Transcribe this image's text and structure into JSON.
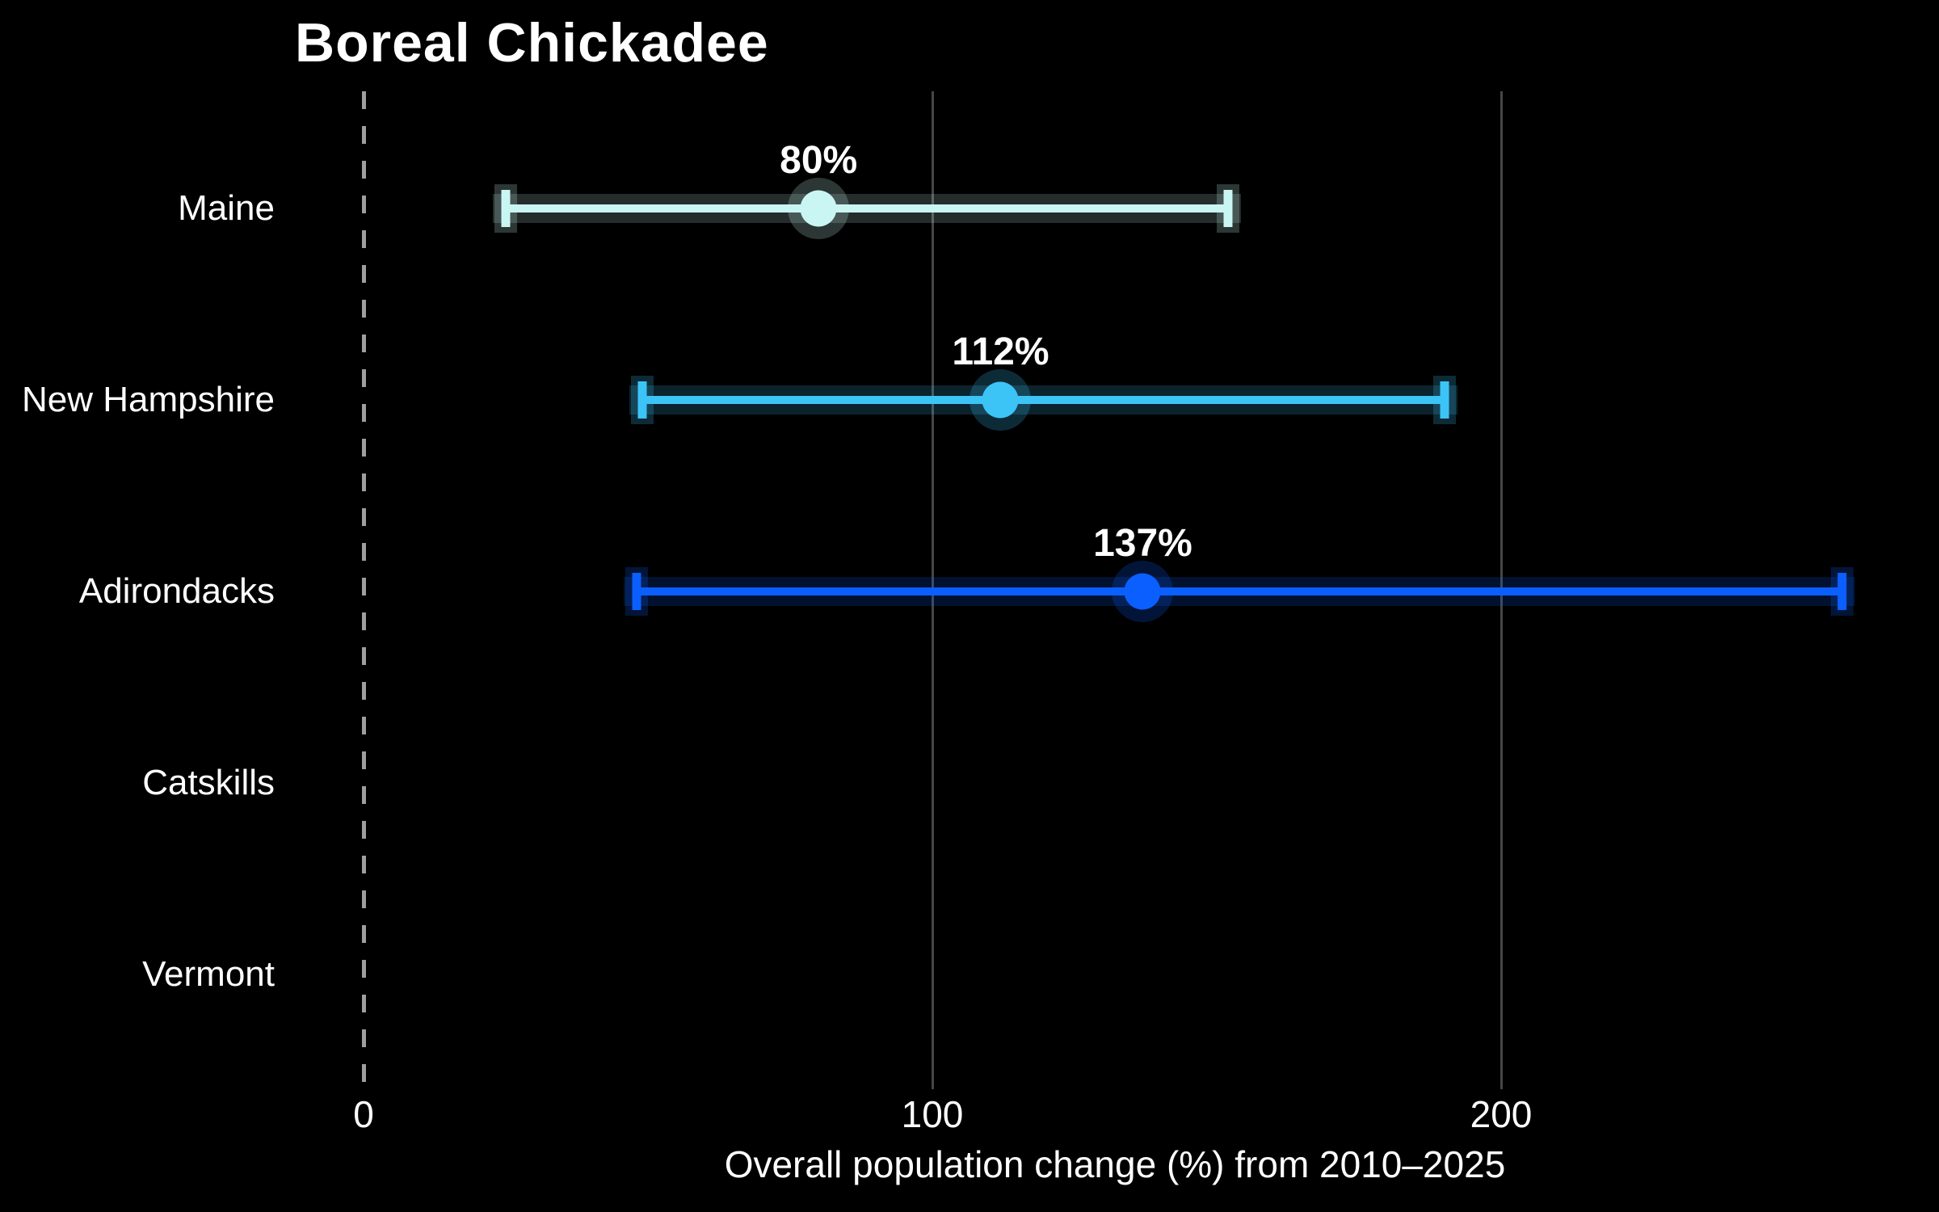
{
  "chart_data": {
    "type": "scatter",
    "subtype": "dot-with-horizontal-error-bars",
    "title": "Boreal Chickadee",
    "xlabel": "Overall population change (%) from 2010–2025",
    "ylabel": "",
    "categories": [
      "Maine",
      "New Hampshire",
      "Adirondacks",
      "Catskills",
      "Vermont"
    ],
    "series": [
      {
        "name": "Maine",
        "value": 80,
        "low": 25,
        "high": 152,
        "label": "80%",
        "color": "#c9f6f2"
      },
      {
        "name": "New Hampshire",
        "value": 112,
        "low": 49,
        "high": 190,
        "label": "112%",
        "color": "#3cc4f7"
      },
      {
        "name": "Adirondacks",
        "value": 137,
        "low": 48,
        "high": 260,
        "label": "137%",
        "color": "#0b5fff"
      },
      {
        "name": "Catskills",
        "value": null,
        "low": null,
        "high": null,
        "label": "",
        "color": null
      },
      {
        "name": "Vermont",
        "value": null,
        "low": null,
        "high": null,
        "label": "",
        "color": null
      }
    ],
    "x_ticks": [
      0,
      100,
      200
    ],
    "x_tick_labels": [
      "0",
      "100",
      "200"
    ],
    "xlim": [
      -64,
      277
    ],
    "grid": "vertical-gridlines-at-100-and-200",
    "zero_reference_line": {
      "x": 0,
      "style": "dashed",
      "color": "#9e9e9e"
    },
    "legend_position": "none",
    "background_color": "#000000",
    "text_color": "#ffffff",
    "gridline_color": "#464646"
  }
}
